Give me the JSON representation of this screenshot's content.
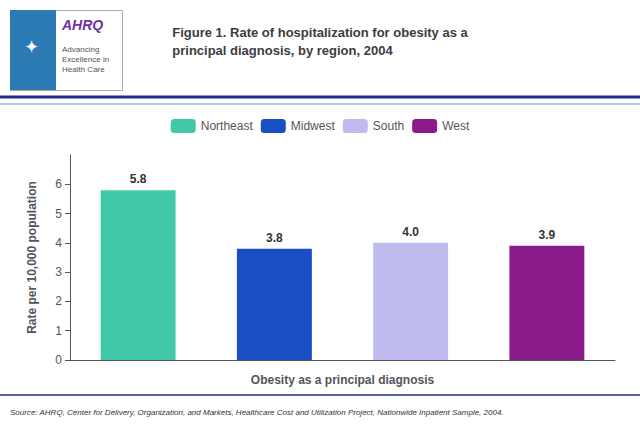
{
  "chart_data": {
    "type": "bar",
    "title": "Figure 1. Rate of hospitalization for obesity as a\nprincipal diagnosis, by region, 2004",
    "categories": [
      "Northeast",
      "Midwest",
      "South",
      "West"
    ],
    "values": [
      5.8,
      3.8,
      4.0,
      3.9
    ],
    "value_labels": [
      "5.8",
      "3.8",
      "4.0",
      "3.9"
    ],
    "colors": [
      "#40C8A8",
      "#1A4FC4",
      "#C0BBEE",
      "#8B1A8B"
    ],
    "xlabel": "Obesity as a principal diagnosis",
    "ylabel": "Rate per 10,000 population",
    "ylim": [
      0,
      7
    ],
    "yticks": [
      0,
      1,
      2,
      3,
      4,
      5,
      6
    ],
    "grid": false,
    "legend": "top",
    "data_labels": true,
    "tick_labels": "y",
    "annotations": [
      "✦",
      "AHRQ",
      "Advancing\nExcellence in\nHealth Care",
      "Source: AHRQ, Center for Delivery, Organization, and Markets, Healthcare Cost and Utilization Project, Nationwide Inpatient Sample, 2004."
    ]
  }
}
